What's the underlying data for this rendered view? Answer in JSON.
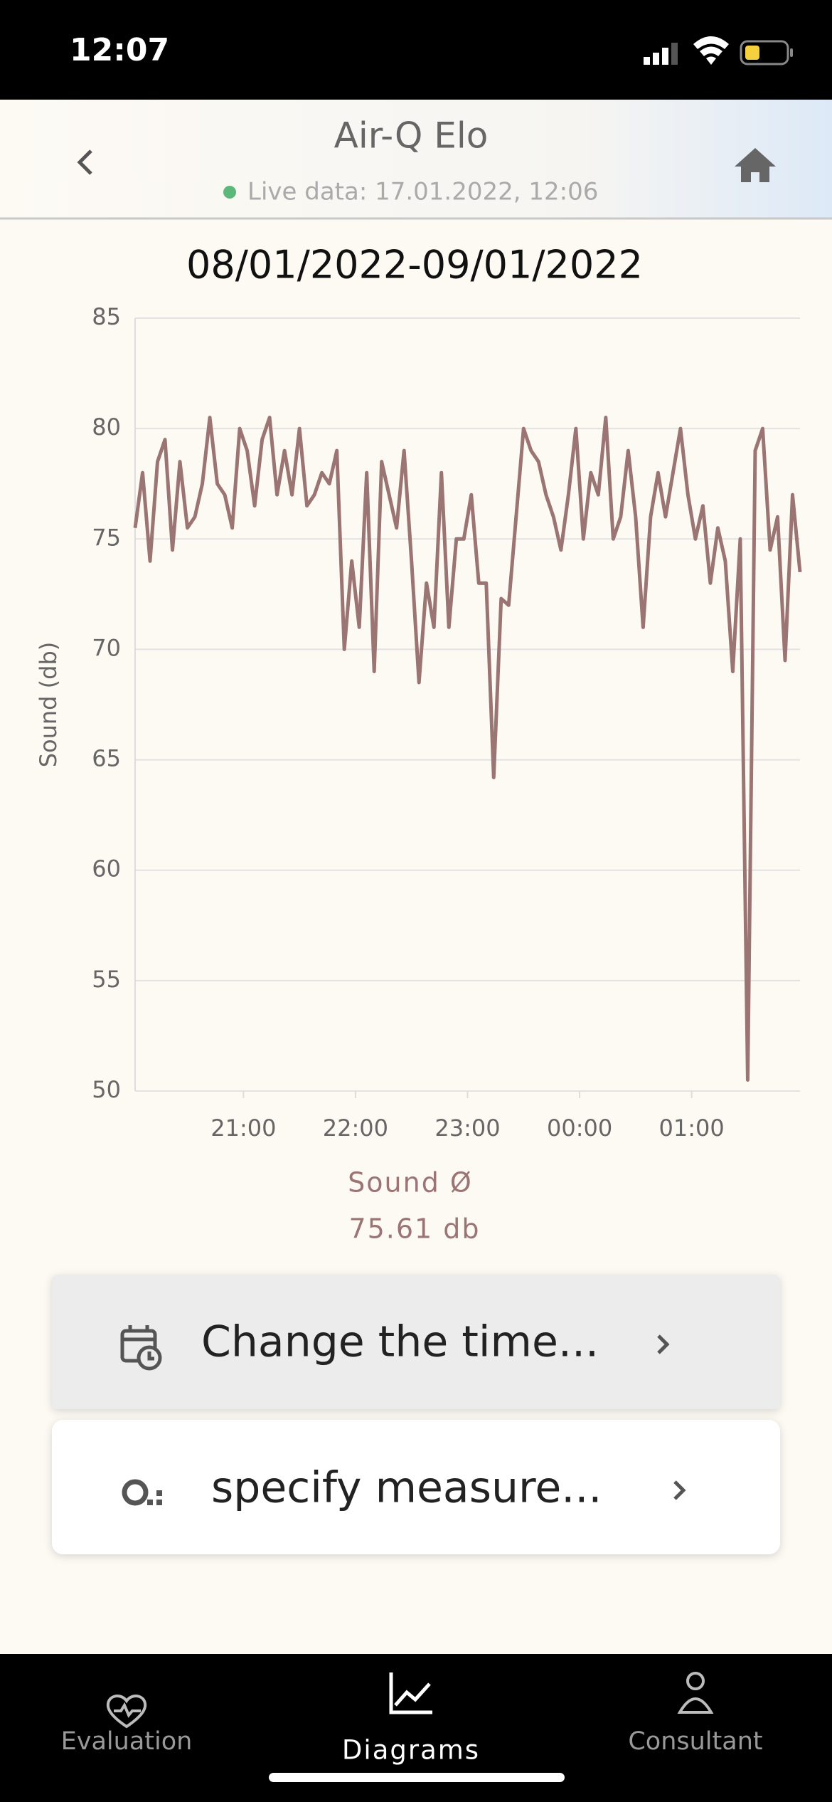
{
  "status_bar": {
    "time": "12:07"
  },
  "header": {
    "title": "Air-Q Elo",
    "subtitle": "Live data: 17.01.2022, 12:06"
  },
  "chart_data": {
    "type": "line",
    "title": "08/01/2022-09/01/2022",
    "y_label": "Sound (db)",
    "color": "#9b7474",
    "grid": true,
    "x": [
      "20:02",
      "20:06",
      "20:10",
      "20:14",
      "20:18",
      "20:22",
      "20:26",
      "20:30",
      "20:34",
      "20:38",
      "20:42",
      "20:46",
      "20:50",
      "20:54",
      "20:58",
      "21:02",
      "21:06",
      "21:10",
      "21:14",
      "21:18",
      "21:22",
      "21:26",
      "21:30",
      "21:34",
      "21:38",
      "21:42",
      "21:46",
      "21:50",
      "21:54",
      "21:58",
      "22:02",
      "22:06",
      "22:10",
      "22:14",
      "22:18",
      "22:22",
      "22:26",
      "22:30",
      "22:34",
      "22:38",
      "22:42",
      "22:46",
      "22:50",
      "22:54",
      "22:58",
      "23:02",
      "23:06",
      "23:10",
      "23:14",
      "23:18",
      "23:22",
      "23:26",
      "23:30",
      "23:34",
      "23:38",
      "23:42",
      "23:46",
      "23:50",
      "23:54",
      "23:58",
      "00:02",
      "00:06",
      "00:10",
      "00:14",
      "00:18",
      "00:22",
      "00:26",
      "00:30",
      "00:34",
      "00:38",
      "00:42",
      "00:46",
      "00:50",
      "00:54",
      "00:58",
      "01:02",
      "01:06",
      "01:10",
      "01:14",
      "01:18",
      "01:22",
      "01:26",
      "01:30",
      "01:34",
      "01:38",
      "01:42",
      "01:46",
      "01:50",
      "01:54",
      "01:58"
    ],
    "values": [
      75.5,
      78,
      74,
      78.5,
      79.5,
      74.5,
      78.5,
      75.5,
      76,
      77.5,
      80.5,
      77.5,
      77,
      75.5,
      80,
      79,
      76.5,
      79.5,
      80.5,
      77,
      79,
      77,
      80,
      76.5,
      77,
      78,
      77.5,
      79,
      70,
      74,
      71,
      78,
      69,
      78.5,
      77,
      75.5,
      79,
      74,
      68.5,
      73,
      71,
      78,
      71,
      75,
      75,
      77,
      73,
      73,
      64.2,
      72.3,
      72,
      76,
      80,
      79,
      78.5,
      77,
      76,
      74.5,
      77,
      80,
      75,
      78,
      77,
      80.5,
      75,
      76,
      79,
      76,
      71,
      76,
      78,
      76,
      78,
      80,
      77,
      75,
      76.5,
      73,
      75.5,
      74,
      69,
      75,
      50.5,
      79,
      80,
      74.5,
      76,
      69.5,
      77,
      73.5
    ],
    "xlim": [
      "20:02",
      "01:58"
    ],
    "xticks": [
      "21:00",
      "22:00",
      "23:00",
      "00:00",
      "01:00"
    ],
    "ylim": [
      50,
      85
    ],
    "yticks": [
      50,
      55,
      60,
      65,
      70,
      75,
      80,
      85
    ]
  },
  "summary": {
    "label": "Sound Ø",
    "value": "75.61 db"
  },
  "actions": [
    {
      "label": "Change the time..."
    },
    {
      "label": "specify measure..."
    }
  ],
  "nav": [
    {
      "label": "Evaluation"
    },
    {
      "label": "Diagrams"
    },
    {
      "label": "Consultant"
    }
  ]
}
